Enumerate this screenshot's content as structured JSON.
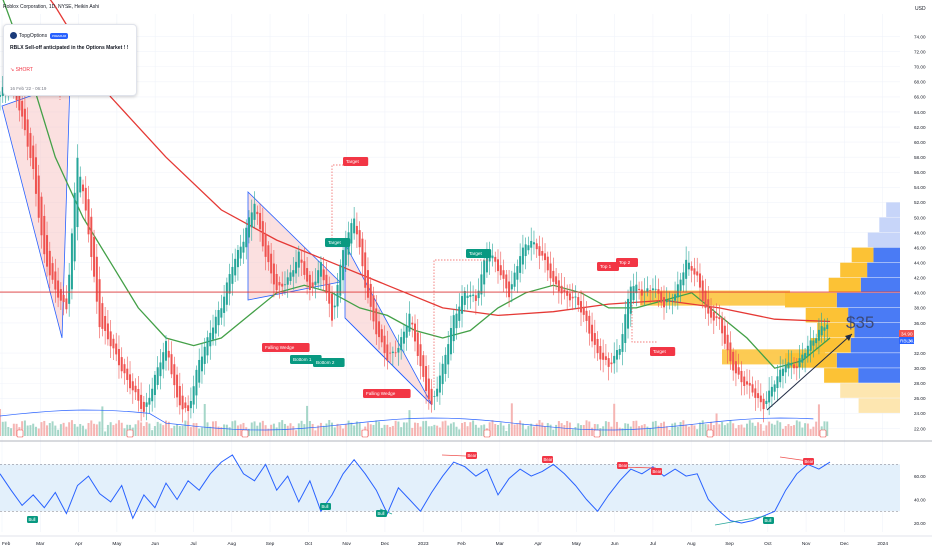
{
  "header": {
    "title": "Roblox Corporation, 1D, NYSE, Heikin Ashi",
    "currency": "USD"
  },
  "idea_card": {
    "author": "TopgOptions",
    "badge": "PREMIUM",
    "headline": "RBLX Sell-off anticipated in the Options Market ! !",
    "side": "↘ SHORT",
    "date": "16 Feb '22 - 06:19"
  },
  "price_badges": {
    "last": "34.90",
    "symbol": "RBLX",
    "symbol_value": "34.21"
  },
  "colors": {
    "up": "#26a69a",
    "down": "#ef5350",
    "ma_fast": "#43a047",
    "ma_slow": "#e53935",
    "line_blue": "#2962ff",
    "volume_profile": "#fcc235",
    "volume_profile_light": "#fde6b0",
    "volume_profile_blue": "#2962ff",
    "wedge_fill": "#f8c6c6",
    "wedge_line": "#2962ff",
    "hline": "#e53935",
    "rsi_band": "#e3f0fb",
    "rsi_line": "#2962ff"
  },
  "annotations": {
    "big_target_label": "$35",
    "labels": [
      {
        "text": "Target",
        "kind": "red"
      },
      {
        "text": "Target",
        "kind": "green"
      },
      {
        "text": "Target",
        "kind": "green"
      },
      {
        "text": "Target",
        "kind": "red"
      },
      {
        "text": "Top 1",
        "kind": "red"
      },
      {
        "text": "Top 2",
        "kind": "red"
      },
      {
        "text": "Falling Wedge",
        "kind": "red"
      },
      {
        "text": "Falling Wedge",
        "kind": "red"
      },
      {
        "text": "Bottom 1",
        "kind": "green"
      },
      {
        "text": "Bottom 2",
        "kind": "green"
      }
    ],
    "rsi_labels": [
      {
        "text": "Bull",
        "kind": "green"
      },
      {
        "text": "Bull",
        "kind": "green"
      },
      {
        "text": "Bull",
        "kind": "green"
      },
      {
        "text": "Bull",
        "kind": "green"
      },
      {
        "text": "Bear",
        "kind": "red"
      },
      {
        "text": "Bear",
        "kind": "red"
      },
      {
        "text": "Bear",
        "kind": "red"
      },
      {
        "text": "Bear",
        "kind": "red"
      },
      {
        "text": "Bear",
        "kind": "red"
      }
    ]
  },
  "chart_data": [
    {
      "type": "candlestick",
      "title": "Roblox Corporation, 1D, NYSE, Heikin Ashi",
      "y_ticks": [
        "74.00",
        "72.00",
        "70.00",
        "68.00",
        "66.00",
        "64.00",
        "62.00",
        "60.00",
        "58.00",
        "56.00",
        "54.00",
        "52.00",
        "50.00",
        "48.00",
        "46.00",
        "44.00",
        "42.00",
        "40.00",
        "38.00",
        "36.00",
        "32.00",
        "30.00",
        "28.00",
        "26.00",
        "24.00",
        "22.00"
      ],
      "x_ticks": [
        "Feb",
        "Mar",
        "Apr",
        "May",
        "Jun",
        "Jul",
        "Aug",
        "Sep",
        "Oct",
        "Nov",
        "Dec",
        "2023",
        "Feb",
        "Mar",
        "Apr",
        "May",
        "Jun",
        "Jul",
        "Aug",
        "Sep",
        "Oct",
        "Nov",
        "Dec",
        "2024"
      ],
      "ylim": [
        21,
        77
      ],
      "price_path": [
        [
          0,
          66
        ],
        [
          4,
          69
        ],
        [
          8,
          63
        ],
        [
          12,
          56
        ],
        [
          16,
          45
        ],
        [
          20,
          40
        ],
        [
          24,
          38
        ],
        [
          28,
          58
        ],
        [
          32,
          48
        ],
        [
          36,
          36
        ],
        [
          40,
          33
        ],
        [
          44,
          30
        ],
        [
          48,
          27
        ],
        [
          52,
          24
        ],
        [
          56,
          29
        ],
        [
          60,
          33
        ],
        [
          64,
          26
        ],
        [
          68,
          24
        ],
        [
          72,
          31
        ],
        [
          76,
          35
        ],
        [
          80,
          38
        ],
        [
          84,
          44
        ],
        [
          88,
          47
        ],
        [
          92,
          52
        ],
        [
          96,
          45
        ],
        [
          100,
          40
        ],
        [
          104,
          42
        ],
        [
          108,
          45
        ],
        [
          112,
          40
        ],
        [
          116,
          44
        ],
        [
          120,
          36
        ],
        [
          124,
          46
        ],
        [
          128,
          50
        ],
        [
          132,
          41
        ],
        [
          136,
          35
        ],
        [
          140,
          31
        ],
        [
          144,
          33
        ],
        [
          148,
          37
        ],
        [
          152,
          30
        ],
        [
          156,
          25
        ],
        [
          160,
          30
        ],
        [
          164,
          37
        ],
        [
          168,
          40
        ],
        [
          172,
          39
        ],
        [
          176,
          46
        ],
        [
          180,
          43
        ],
        [
          184,
          40
        ],
        [
          188,
          45
        ],
        [
          192,
          47
        ],
        [
          196,
          45
        ],
        [
          200,
          41
        ],
        [
          204,
          40
        ],
        [
          208,
          39
        ],
        [
          212,
          36
        ],
        [
          216,
          32
        ],
        [
          220,
          30
        ],
        [
          224,
          33
        ],
        [
          228,
          41
        ],
        [
          232,
          40
        ],
        [
          236,
          41
        ],
        [
          240,
          38
        ],
        [
          244,
          40
        ],
        [
          248,
          44
        ],
        [
          252,
          42
        ],
        [
          256,
          37
        ],
        [
          260,
          36
        ],
        [
          264,
          31
        ],
        [
          268,
          28
        ],
        [
          272,
          27
        ],
        [
          276,
          25
        ],
        [
          280,
          28
        ],
        [
          284,
          31
        ],
        [
          288,
          30
        ],
        [
          292,
          33
        ],
        [
          296,
          35
        ],
        [
          300,
          36
        ]
      ],
      "ma_fast_path": [
        [
          0,
          80
        ],
        [
          10,
          70
        ],
        [
          20,
          58
        ],
        [
          30,
          50
        ],
        [
          40,
          44
        ],
        [
          50,
          38
        ],
        [
          60,
          34
        ],
        [
          70,
          33
        ],
        [
          80,
          34
        ],
        [
          90,
          37
        ],
        [
          100,
          40
        ],
        [
          110,
          41
        ],
        [
          120,
          40
        ],
        [
          130,
          38
        ],
        [
          140,
          37
        ],
        [
          150,
          35
        ],
        [
          160,
          34
        ],
        [
          170,
          35
        ],
        [
          180,
          38
        ],
        [
          190,
          40
        ],
        [
          200,
          41
        ],
        [
          210,
          40
        ],
        [
          220,
          38
        ],
        [
          230,
          38
        ],
        [
          240,
          39
        ],
        [
          250,
          40
        ],
        [
          260,
          37
        ],
        [
          270,
          34
        ],
        [
          280,
          30
        ],
        [
          290,
          31
        ],
        [
          300,
          34
        ]
      ],
      "ma_slow_path": [
        [
          0,
          88
        ],
        [
          20,
          78
        ],
        [
          40,
          66
        ],
        [
          60,
          58
        ],
        [
          80,
          51
        ],
        [
          100,
          47
        ],
        [
          120,
          44
        ],
        [
          140,
          41
        ],
        [
          160,
          38
        ],
        [
          180,
          37
        ],
        [
          200,
          37.5
        ],
        [
          220,
          38.5
        ],
        [
          240,
          39
        ],
        [
          260,
          38
        ],
        [
          280,
          36.5
        ],
        [
          300,
          36.2
        ]
      ],
      "horizontal_line_price": 40.1,
      "last_price": 34.9,
      "volume_profile": [
        {
          "price": 51,
          "size": 0.12,
          "color": "blue_light"
        },
        {
          "price": 49,
          "size": 0.18,
          "color": "blue_light"
        },
        {
          "price": 47,
          "size": 0.28,
          "color": "blue_light"
        },
        {
          "price": 45,
          "size": 0.42,
          "color": "mixed"
        },
        {
          "price": 43,
          "size": 0.52,
          "color": "mixed"
        },
        {
          "price": 41,
          "size": 0.62,
          "color": "mixed"
        },
        {
          "price": 39,
          "size": 1.0,
          "color": "mixed"
        },
        {
          "price": 37,
          "size": 0.82,
          "color": "mixed"
        },
        {
          "price": 35,
          "size": 0.72,
          "color": "mixed"
        },
        {
          "price": 33,
          "size": 0.78,
          "color": "mixed"
        },
        {
          "price": 31,
          "size": 1.0,
          "color": "mixed"
        },
        {
          "price": 29,
          "size": 0.66,
          "color": "mixed"
        },
        {
          "price": 27,
          "size": 0.52,
          "color": "light"
        },
        {
          "price": 25,
          "size": 0.36,
          "color": "light"
        }
      ]
    },
    {
      "type": "line",
      "title": "",
      "y_ticks": [
        "60.00",
        "40.00",
        "20.00"
      ],
      "ylim": [
        14,
        84
      ],
      "band": [
        30,
        70
      ],
      "rsi_path": [
        [
          0,
          62
        ],
        [
          4,
          48
        ],
        [
          8,
          35
        ],
        [
          12,
          44
        ],
        [
          16,
          33
        ],
        [
          20,
          46
        ],
        [
          24,
          28
        ],
        [
          28,
          52
        ],
        [
          32,
          60
        ],
        [
          36,
          45
        ],
        [
          40,
          38
        ],
        [
          44,
          52
        ],
        [
          48,
          24
        ],
        [
          52,
          44
        ],
        [
          56,
          33
        ],
        [
          60,
          54
        ],
        [
          64,
          40
        ],
        [
          68,
          56
        ],
        [
          72,
          48
        ],
        [
          76,
          62
        ],
        [
          80,
          72
        ],
        [
          84,
          78
        ],
        [
          88,
          62
        ],
        [
          92,
          56
        ],
        [
          96,
          70
        ],
        [
          100,
          48
        ],
        [
          104,
          60
        ],
        [
          108,
          38
        ],
        [
          112,
          56
        ],
        [
          116,
          30
        ],
        [
          120,
          44
        ],
        [
          124,
          62
        ],
        [
          128,
          74
        ],
        [
          132,
          62
        ],
        [
          136,
          48
        ],
        [
          140,
          28
        ],
        [
          144,
          50
        ],
        [
          148,
          40
        ],
        [
          152,
          30
        ],
        [
          156,
          46
        ],
        [
          160,
          60
        ],
        [
          164,
          72
        ],
        [
          168,
          68
        ],
        [
          172,
          60
        ],
        [
          176,
          66
        ],
        [
          180,
          44
        ],
        [
          184,
          58
        ],
        [
          188,
          66
        ],
        [
          192,
          60
        ],
        [
          196,
          64
        ],
        [
          200,
          70
        ],
        [
          204,
          62
        ],
        [
          208,
          52
        ],
        [
          212,
          40
        ],
        [
          216,
          30
        ],
        [
          220,
          44
        ],
        [
          224,
          56
        ],
        [
          228,
          66
        ],
        [
          232,
          62
        ],
        [
          236,
          68
        ],
        [
          240,
          60
        ],
        [
          244,
          66
        ],
        [
          248,
          60
        ],
        [
          252,
          62
        ],
        [
          256,
          40
        ],
        [
          260,
          30
        ],
        [
          264,
          22
        ],
        [
          268,
          20
        ],
        [
          272,
          22
        ],
        [
          276,
          26
        ],
        [
          280,
          30
        ],
        [
          284,
          48
        ],
        [
          288,
          62
        ],
        [
          292,
          70
        ],
        [
          296,
          66
        ],
        [
          300,
          72
        ]
      ]
    }
  ]
}
